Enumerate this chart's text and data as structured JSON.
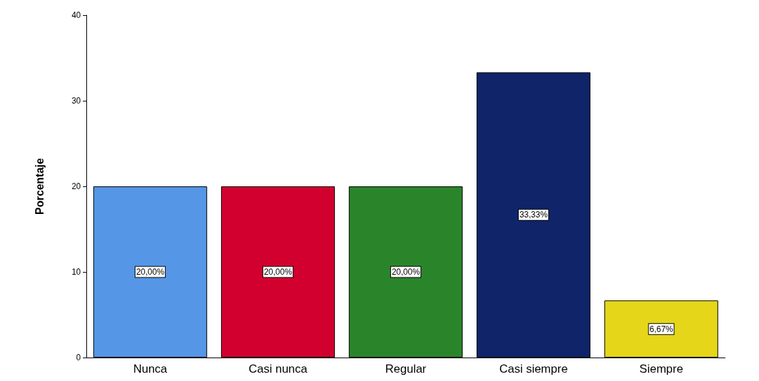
{
  "chart_data": {
    "type": "bar",
    "ylabel": "Porcentaje",
    "categories": [
      "Nunca",
      "Casi nunca",
      "Regular",
      "Casi siempre",
      "Siempre"
    ],
    "values": [
      20,
      20,
      20,
      33.33,
      6.67
    ],
    "colors": [
      "#5596e6",
      "#d2002e",
      "#2a852a",
      "#0f2469",
      "#e6d619"
    ],
    "value_labels": [
      "20,00%",
      "20,00%",
      "20,00%",
      "33,33%",
      "6,67%"
    ],
    "ylim": [
      0,
      40
    ],
    "yticks": [
      0,
      10,
      20,
      30,
      40
    ],
    "grid": false
  }
}
